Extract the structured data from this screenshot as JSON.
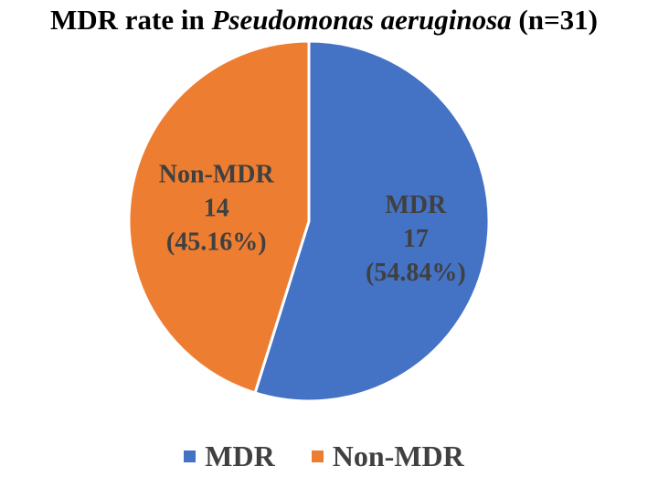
{
  "chart_data": {
    "type": "pie",
    "title": {
      "prefix": "MDR rate in ",
      "italic": "Pseudomonas aeruginosa",
      "suffix": " (n=31)"
    },
    "slices": [
      {
        "name": "MDR",
        "value": 17,
        "percent_label": "(54.84%)",
        "color": "#4472C4"
      },
      {
        "name": "Non-MDR",
        "value": 14,
        "percent_label": "(45.16%)",
        "color": "#ED7D31"
      }
    ],
    "legend": {
      "position": "bottom",
      "items": [
        {
          "label": "MDR",
          "color": "#4472C4"
        },
        {
          "label": "Non-MDR",
          "color": "#ED7D31"
        }
      ]
    },
    "start_angle": "12 o'clock",
    "direction": "clockwise"
  }
}
